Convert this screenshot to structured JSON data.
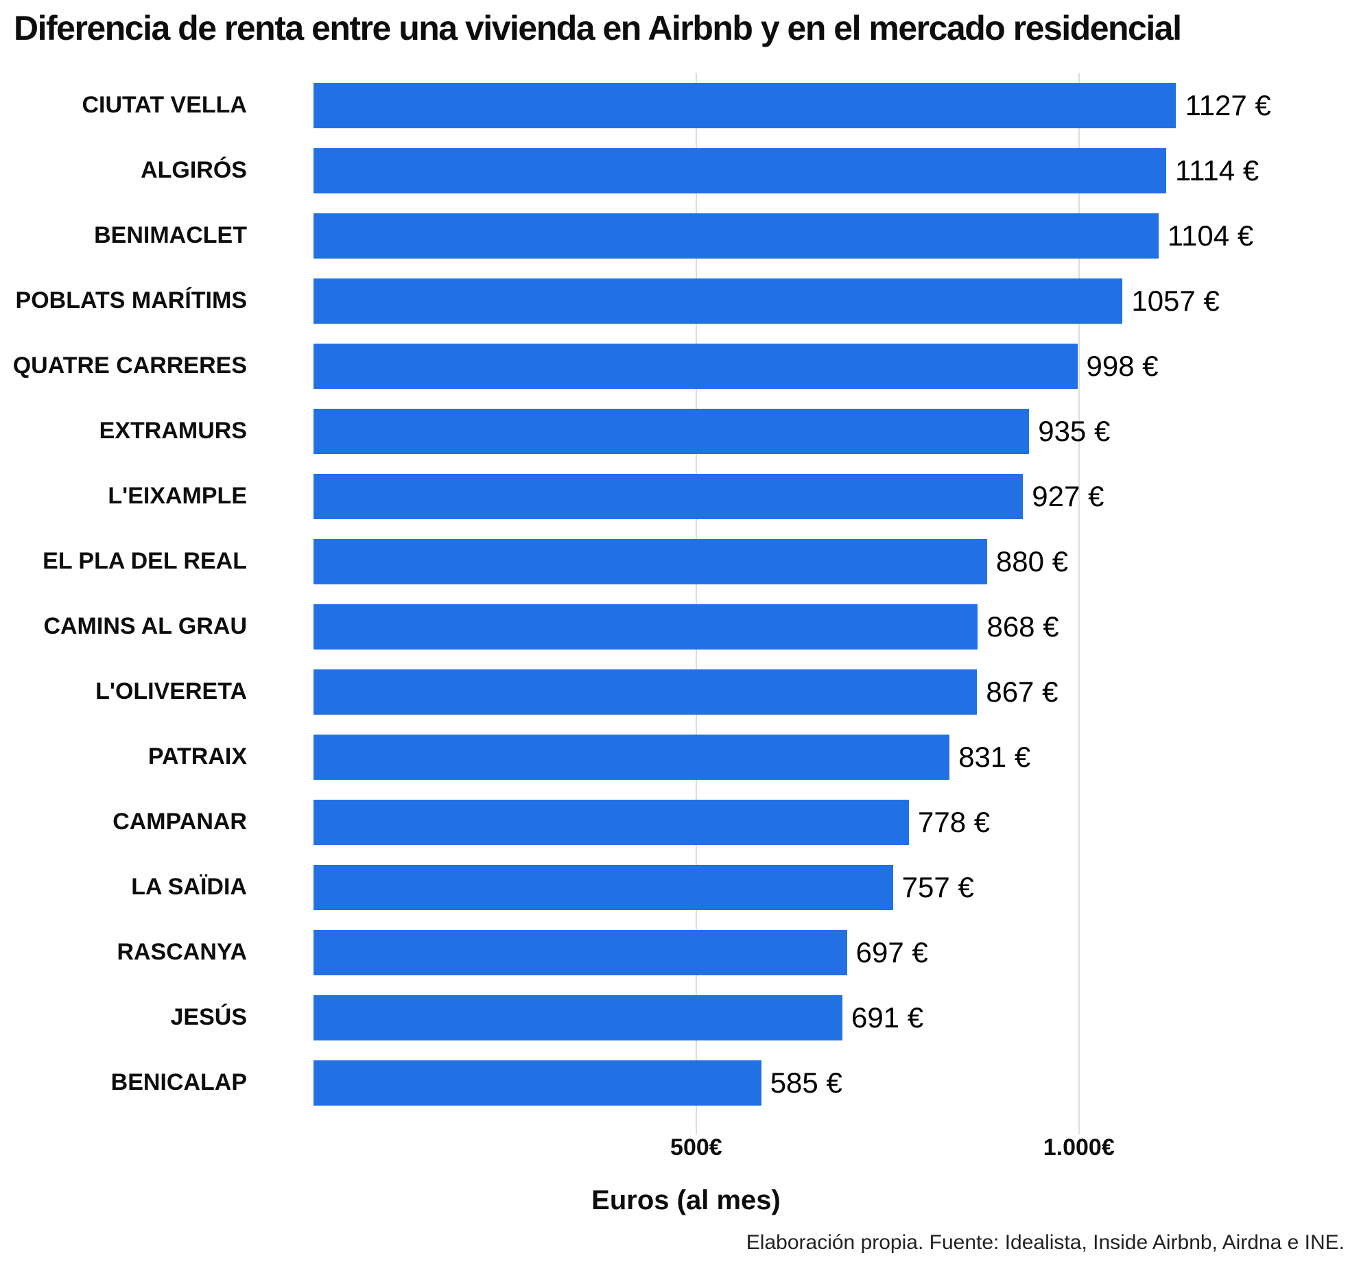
{
  "chart_data": {
    "type": "bar",
    "orientation": "horizontal",
    "title": "Diferencia de renta entre una vivienda en Airbnb y en el mercado residencial",
    "xlabel": "Euros (al mes)",
    "categories": [
      "CIUTAT VELLA",
      "ALGIRÓS",
      "BENIMACLET",
      "POBLATS MARÍTIMS",
      "QUATRE CARRERES",
      "EXTRAMURS",
      "L'EIXAMPLE",
      "EL PLA DEL REAL",
      "CAMINS AL GRAU",
      "L'OLIVERETA",
      "PATRAIX",
      "CAMPANAR",
      "LA SAÏDIA",
      "RASCANYA",
      "JESÚS",
      "BENICALAP"
    ],
    "values": [
      1127,
      1114,
      1104,
      1057,
      998,
      935,
      927,
      880,
      868,
      867,
      831,
      778,
      757,
      697,
      691,
      585
    ],
    "value_labels": [
      "1127 €",
      "1114 €",
      "1104 €",
      "1057 €",
      "998 €",
      "935 €",
      "927 €",
      "880 €",
      "868 €",
      "867 €",
      "831 €",
      "778 €",
      "757 €",
      "697 €",
      "691 €",
      "585 €"
    ],
    "xlim": [
      0,
      1365
    ],
    "xticks": [
      {
        "value": 500,
        "label": "500€"
      },
      {
        "value": 1000,
        "label": "1.000€"
      }
    ],
    "grid": true,
    "bar_color": "#2171E5",
    "gridline_color": "#dcdcdc"
  },
  "footer": {
    "source": "Elaboración propia. Fuente: Idealista, Inside Airbnb, Airdna e INE."
  }
}
